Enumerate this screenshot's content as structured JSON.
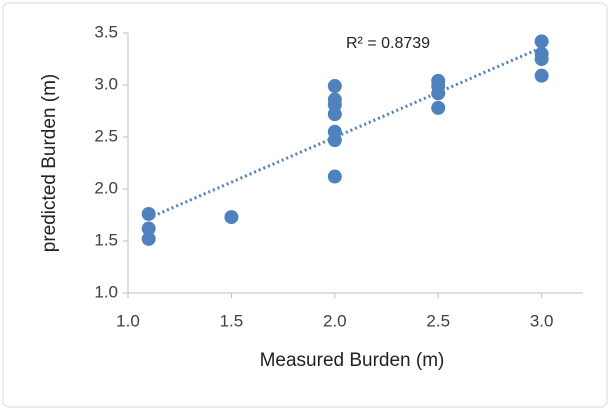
{
  "chart_data": {
    "type": "scatter",
    "x_label": "Measured Burden (m)",
    "y_label": "predicted Burden (m)",
    "annotation": "R² = 0.8739",
    "color": "#4f81bd",
    "x": [
      1.1,
      1.1,
      1.1,
      1.5,
      2.0,
      2.0,
      2.0,
      2.0,
      2.0,
      2.0,
      2.0,
      2.5,
      2.5,
      2.5,
      2.5,
      3.0,
      3.0,
      3.0,
      3.0
    ],
    "values": [
      1.76,
      1.62,
      1.52,
      1.73,
      2.99,
      2.86,
      2.81,
      2.72,
      2.55,
      2.47,
      2.12,
      3.04,
      2.99,
      2.92,
      2.78,
      3.42,
      3.3,
      3.25,
      3.09
    ],
    "trendline": {
      "x": [
        1.1,
        3.0
      ],
      "y": [
        1.72,
        3.36
      ]
    },
    "xlim": [
      1.0,
      3.2
    ],
    "xticks": [
      {
        "value": 1,
        "label": "1.0"
      },
      {
        "value": 1.5,
        "label": "1.5"
      },
      {
        "value": 2,
        "label": "2.0"
      },
      {
        "value": 2.5,
        "label": "2.5"
      },
      {
        "value": 3,
        "label": "3.0"
      }
    ],
    "ylim": [
      1.0,
      3.5
    ],
    "yticks": [
      {
        "value": 1,
        "label": "1.0"
      },
      {
        "value": 1.5,
        "label": "1.5"
      },
      {
        "value": 2,
        "label": "2.0"
      },
      {
        "value": 2.5,
        "label": "2.5"
      },
      {
        "value": 3,
        "label": "3.0"
      },
      {
        "value": 3.5,
        "label": "3.5"
      }
    ]
  }
}
